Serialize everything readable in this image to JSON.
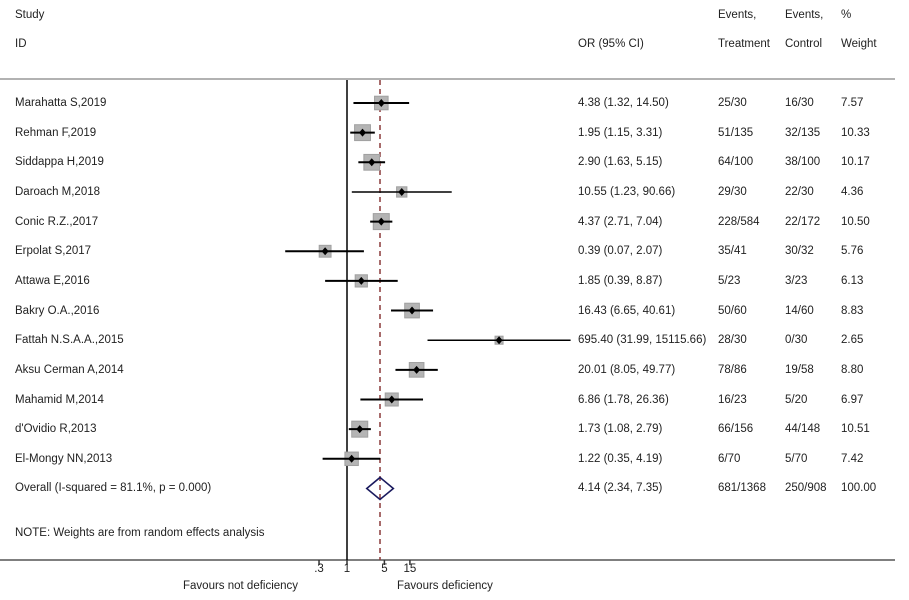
{
  "chart_data": {
    "type": "forest",
    "headers": {
      "study_line1": "Study",
      "study_line2": "ID",
      "or": "OR (95% CI)",
      "treat_line1": "Events,",
      "treat_line2": "Treatment",
      "ctrl_line1": "Events,",
      "ctrl_line2": "Control",
      "weight_line1": "%",
      "weight_line2": "Weight"
    },
    "studies": [
      {
        "id": "Marahatta S,2019",
        "or": 4.38,
        "lo": 1.32,
        "hi": 14.5,
        "or_text": "4.38 (1.32, 14.50)",
        "treatment": "25/30",
        "control": "16/30",
        "weight": 7.57,
        "weight_text": "7.57"
      },
      {
        "id": "Rehman F,2019",
        "or": 1.95,
        "lo": 1.15,
        "hi": 3.31,
        "or_text": "1.95 (1.15, 3.31)",
        "treatment": "51/135",
        "control": "32/135",
        "weight": 10.33,
        "weight_text": "10.33"
      },
      {
        "id": "Siddappa H,2019",
        "or": 2.9,
        "lo": 1.63,
        "hi": 5.15,
        "or_text": "2.90 (1.63, 5.15)",
        "treatment": "64/100",
        "control": "38/100",
        "weight": 10.17,
        "weight_text": "10.17"
      },
      {
        "id": "Daroach M,2018",
        "or": 10.55,
        "lo": 1.23,
        "hi": 90.66,
        "or_text": "10.55 (1.23, 90.66)",
        "treatment": "29/30",
        "control": "22/30",
        "weight": 4.36,
        "weight_text": "4.36"
      },
      {
        "id": "Conic R.Z.,2017",
        "or": 4.37,
        "lo": 2.71,
        "hi": 7.04,
        "or_text": "4.37 (2.71, 7.04)",
        "treatment": "228/584",
        "control": "22/172",
        "weight": 10.5,
        "weight_text": "10.50"
      },
      {
        "id": "Erpolat S,2017",
        "or": 0.39,
        "lo": 0.07,
        "hi": 2.07,
        "or_text": "0.39 (0.07, 2.07)",
        "treatment": "35/41",
        "control": "30/32",
        "weight": 5.76,
        "weight_text": "5.76"
      },
      {
        "id": "Attawa E,2016",
        "or": 1.85,
        "lo": 0.39,
        "hi": 8.87,
        "or_text": "1.85 (0.39, 8.87)",
        "treatment": "5/23",
        "control": "3/23",
        "weight": 6.13,
        "weight_text": "6.13"
      },
      {
        "id": "Bakry O.A.,2016",
        "or": 16.43,
        "lo": 6.65,
        "hi": 40.61,
        "or_text": "16.43 (6.65, 40.61)",
        "treatment": "50/60",
        "control": "14/60",
        "weight": 8.83,
        "weight_text": "8.83"
      },
      {
        "id": "Fattah N.S.A.A.,2015",
        "or": 695.4,
        "lo": 31.99,
        "hi": 15115.66,
        "or_text": "695.40 (31.99, 15115.66)",
        "treatment": "28/30",
        "control": "0/30",
        "weight": 2.65,
        "weight_text": "2.65"
      },
      {
        "id": "Aksu Cerman A,2014",
        "or": 20.01,
        "lo": 8.05,
        "hi": 49.77,
        "or_text": "20.01 (8.05, 49.77)",
        "treatment": "78/86",
        "control": "19/58",
        "weight": 8.8,
        "weight_text": "8.80"
      },
      {
        "id": "Mahamid M,2014",
        "or": 6.86,
        "lo": 1.78,
        "hi": 26.36,
        "or_text": "6.86 (1.78, 26.36)",
        "treatment": "16/23",
        "control": "5/20",
        "weight": 6.97,
        "weight_text": "6.97"
      },
      {
        "id": "d'Ovidio R,2013",
        "or": 1.73,
        "lo": 1.08,
        "hi": 2.79,
        "or_text": "1.73 (1.08, 2.79)",
        "treatment": "66/156",
        "control": "44/148",
        "weight": 10.51,
        "weight_text": "10.51"
      },
      {
        "id": "El-Mongy NN,2013",
        "or": 1.22,
        "lo": 0.35,
        "hi": 4.19,
        "or_text": "1.22 (0.35, 4.19)",
        "treatment": "6/70",
        "control": "5/70",
        "weight": 7.42,
        "weight_text": "7.42"
      }
    ],
    "overall": {
      "id": "Overall  (I-squared = 81.1%, p = 0.000)",
      "or": 4.14,
      "lo": 2.34,
      "hi": 7.35,
      "or_text": "4.14 (2.34, 7.35)",
      "treatment": "681/1368",
      "control": "250/908",
      "weight_text": "100.00"
    },
    "note": "NOTE: Weights are from random effects analysis",
    "x_scale": "log",
    "x_ticks": [
      0.3,
      1,
      5,
      15
    ],
    "x_tick_labels": [
      ".3",
      "1",
      "5",
      "15"
    ],
    "null_line": 1,
    "label_left": "Favours not deficiency",
    "label_right": "Favours deficiency",
    "colors": {
      "box": "#b4b4b4",
      "line": "#000000",
      "diamond": "#1a1a5e",
      "overall_line": "#8b3a3a"
    }
  }
}
